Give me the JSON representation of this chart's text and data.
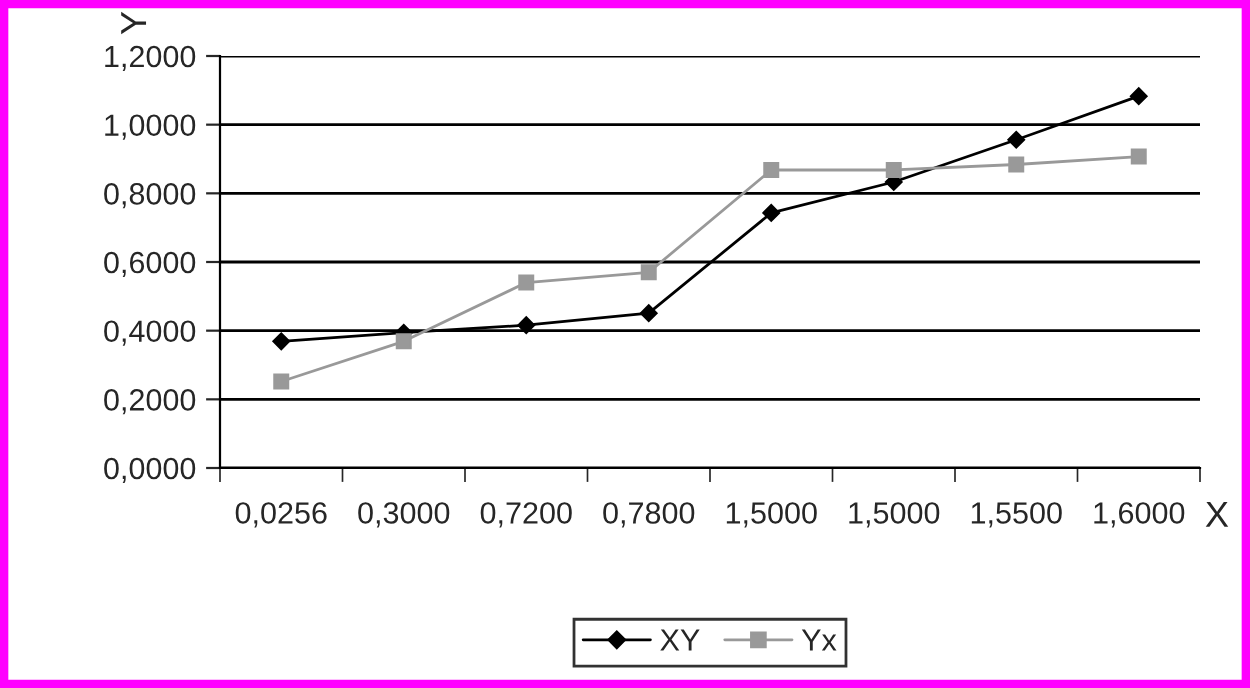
{
  "chart_data": {
    "type": "line",
    "xlabel": "X",
    "ylabel": "Y",
    "categories": [
      "0,0256",
      "0,3000",
      "0,7200",
      "0,7800",
      "1,5000",
      "1,5000",
      "1,5500",
      "1,6000"
    ],
    "series": [
      {
        "name": "XY",
        "color": "#000000",
        "marker": "diamond",
        "values": [
          0.369,
          0.394,
          0.416,
          0.451,
          0.743,
          0.833,
          0.956,
          1.083
        ]
      },
      {
        "name": "Yx",
        "color": "#999999",
        "marker": "square",
        "values": [
          0.252,
          0.369,
          0.54,
          0.57,
          0.868,
          0.868,
          0.884,
          0.907
        ]
      }
    ],
    "ylim": [
      0,
      1.2
    ],
    "yticks": [
      {
        "value": 0,
        "label": "0,0000"
      },
      {
        "value": 0.2,
        "label": "0,2000"
      },
      {
        "value": 0.4,
        "label": "0,4000"
      },
      {
        "value": 0.6,
        "label": "0,6000"
      },
      {
        "value": 0.8,
        "label": "0,8000"
      },
      {
        "value": 1.0,
        "label": "1,0000"
      },
      {
        "value": 1.2,
        "label": "1,2000"
      }
    ],
    "grid": "y",
    "legend": "bottom"
  }
}
